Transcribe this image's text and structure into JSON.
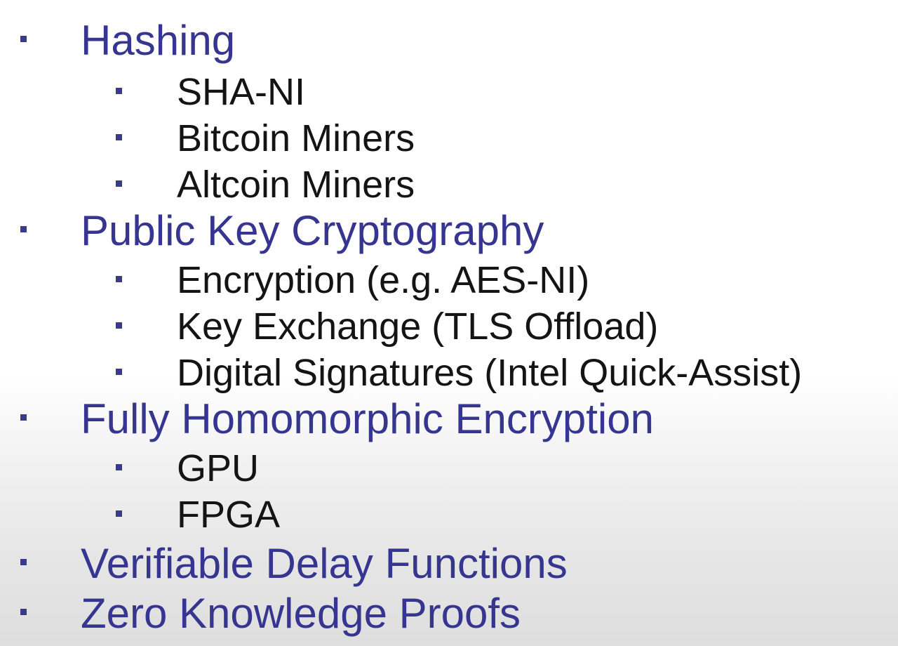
{
  "colors": {
    "heading_text": "#363690",
    "sub_text": "#141414",
    "bullet": "#3a3a8c"
  },
  "items": [
    {
      "level": 1,
      "text": "Hashing"
    },
    {
      "level": 2,
      "text": "SHA-NI"
    },
    {
      "level": 2,
      "text": "Bitcoin Miners"
    },
    {
      "level": 2,
      "text": "Altcoin Miners"
    },
    {
      "level": 1,
      "text": "Public Key Cryptography"
    },
    {
      "level": 2,
      "text": "Encryption (e.g. AES-NI)"
    },
    {
      "level": 2,
      "text": "Key Exchange (TLS Offload)"
    },
    {
      "level": 2,
      "text": "Digital Signatures (Intel Quick-Assist)"
    },
    {
      "level": 1,
      "text": "Fully Homomorphic Encryption"
    },
    {
      "level": 2,
      "text": "GPU"
    },
    {
      "level": 2,
      "text": "FPGA"
    },
    {
      "level": 1,
      "text": "Verifiable Delay Functions"
    },
    {
      "level": 1,
      "text": "Zero Knowledge Proofs"
    }
  ]
}
